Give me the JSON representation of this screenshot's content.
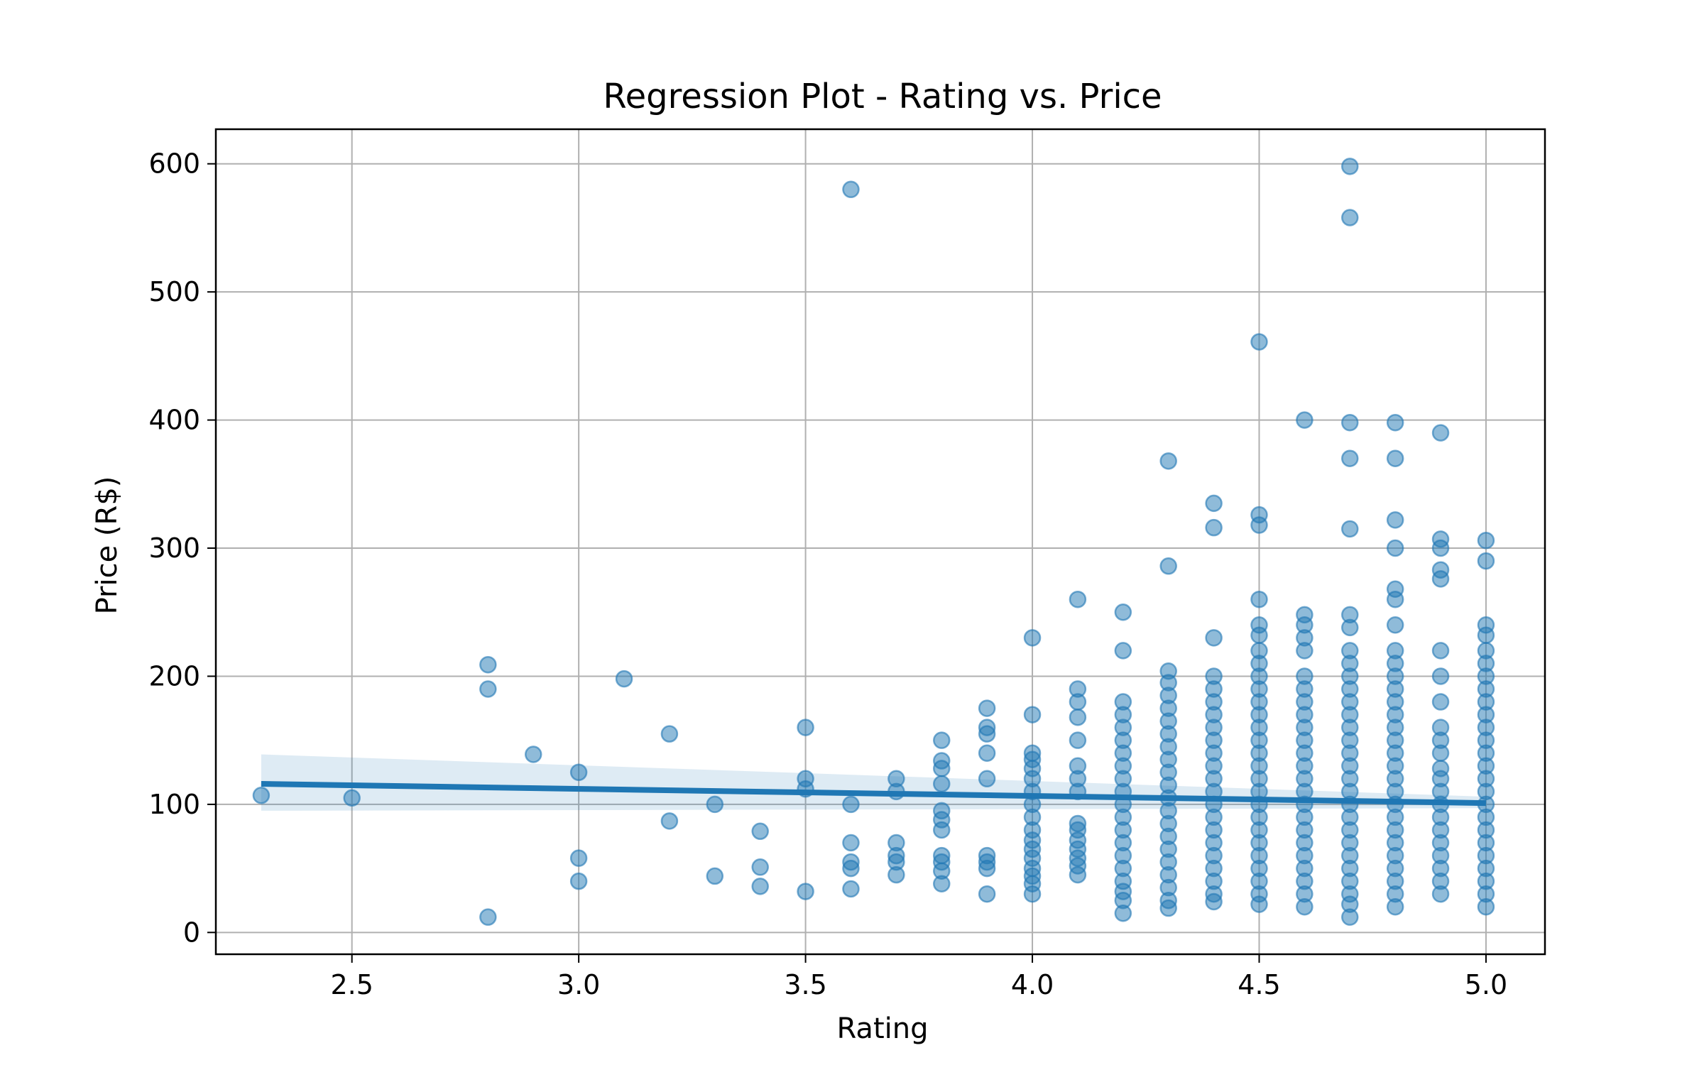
{
  "chart_data": {
    "type": "scatter",
    "title": "Regression Plot - Rating vs. Price",
    "xlabel": "Rating",
    "ylabel": "Price (R$)",
    "xlim": [
      2.2,
      5.13
    ],
    "ylim": [
      -17,
      627
    ],
    "x_ticks": [
      2.5,
      3.0,
      3.5,
      4.0,
      4.5,
      5.0
    ],
    "x_tick_labels": [
      "2.5",
      "3.0",
      "3.5",
      "4.0",
      "4.5",
      "5.0"
    ],
    "y_ticks": [
      0,
      100,
      200,
      300,
      400,
      500,
      600
    ],
    "y_tick_labels": [
      "0",
      "100",
      "200",
      "300",
      "400",
      "500",
      "600"
    ],
    "grid": true,
    "colors": {
      "points": "#1f77b4",
      "line": "#1f77b4",
      "band": "#1f77b4"
    },
    "regression": {
      "x": [
        2.3,
        5.0
      ],
      "y": [
        116,
        101
      ],
      "ci_lower": [
        95,
        97
      ],
      "ci_upper": [
        139,
        106
      ]
    },
    "points": [
      [
        2.3,
        107
      ],
      [
        2.5,
        105
      ],
      [
        2.8,
        209
      ],
      [
        2.8,
        190
      ],
      [
        2.8,
        12
      ],
      [
        2.9,
        139
      ],
      [
        3.0,
        125
      ],
      [
        3.0,
        58
      ],
      [
        3.0,
        40
      ],
      [
        3.1,
        198
      ],
      [
        3.2,
        155
      ],
      [
        3.2,
        87
      ],
      [
        3.3,
        100
      ],
      [
        3.3,
        44
      ],
      [
        3.4,
        79
      ],
      [
        3.4,
        51
      ],
      [
        3.4,
        36
      ],
      [
        3.5,
        160
      ],
      [
        3.5,
        120
      ],
      [
        3.5,
        112
      ],
      [
        3.5,
        32
      ],
      [
        3.6,
        580
      ],
      [
        3.6,
        100
      ],
      [
        3.6,
        70
      ],
      [
        3.6,
        55
      ],
      [
        3.6,
        50
      ],
      [
        3.6,
        34
      ],
      [
        3.7,
        120
      ],
      [
        3.7,
        110
      ],
      [
        3.7,
        70
      ],
      [
        3.7,
        60
      ],
      [
        3.7,
        55
      ],
      [
        3.7,
        45
      ],
      [
        3.8,
        150
      ],
      [
        3.8,
        134
      ],
      [
        3.8,
        128
      ],
      [
        3.8,
        116
      ],
      [
        3.8,
        95
      ],
      [
        3.8,
        88
      ],
      [
        3.8,
        80
      ],
      [
        3.8,
        60
      ],
      [
        3.8,
        55
      ],
      [
        3.8,
        48
      ],
      [
        3.8,
        38
      ],
      [
        3.9,
        175
      ],
      [
        3.9,
        160
      ],
      [
        3.9,
        155
      ],
      [
        3.9,
        140
      ],
      [
        3.9,
        120
      ],
      [
        3.9,
        60
      ],
      [
        3.9,
        55
      ],
      [
        3.9,
        50
      ],
      [
        3.9,
        30
      ],
      [
        4.0,
        230
      ],
      [
        4.0,
        170
      ],
      [
        4.0,
        140
      ],
      [
        4.0,
        135
      ],
      [
        4.0,
        128
      ],
      [
        4.0,
        120
      ],
      [
        4.0,
        110
      ],
      [
        4.0,
        100
      ],
      [
        4.0,
        90
      ],
      [
        4.0,
        80
      ],
      [
        4.0,
        72
      ],
      [
        4.0,
        65
      ],
      [
        4.0,
        58
      ],
      [
        4.0,
        50
      ],
      [
        4.0,
        44
      ],
      [
        4.0,
        38
      ],
      [
        4.0,
        30
      ],
      [
        4.1,
        260
      ],
      [
        4.1,
        190
      ],
      [
        4.1,
        180
      ],
      [
        4.1,
        168
      ],
      [
        4.1,
        150
      ],
      [
        4.1,
        130
      ],
      [
        4.1,
        120
      ],
      [
        4.1,
        110
      ],
      [
        4.1,
        85
      ],
      [
        4.1,
        80
      ],
      [
        4.1,
        72
      ],
      [
        4.1,
        65
      ],
      [
        4.1,
        58
      ],
      [
        4.1,
        52
      ],
      [
        4.1,
        45
      ],
      [
        4.2,
        250
      ],
      [
        4.2,
        220
      ],
      [
        4.2,
        180
      ],
      [
        4.2,
        170
      ],
      [
        4.2,
        160
      ],
      [
        4.2,
        150
      ],
      [
        4.2,
        140
      ],
      [
        4.2,
        130
      ],
      [
        4.2,
        120
      ],
      [
        4.2,
        110
      ],
      [
        4.2,
        100
      ],
      [
        4.2,
        90
      ],
      [
        4.2,
        80
      ],
      [
        4.2,
        70
      ],
      [
        4.2,
        60
      ],
      [
        4.2,
        50
      ],
      [
        4.2,
        40
      ],
      [
        4.2,
        32
      ],
      [
        4.2,
        25
      ],
      [
        4.2,
        15
      ],
      [
        4.3,
        368
      ],
      [
        4.3,
        286
      ],
      [
        4.3,
        204
      ],
      [
        4.3,
        195
      ],
      [
        4.3,
        185
      ],
      [
        4.3,
        175
      ],
      [
        4.3,
        165
      ],
      [
        4.3,
        155
      ],
      [
        4.3,
        145
      ],
      [
        4.3,
        135
      ],
      [
        4.3,
        125
      ],
      [
        4.3,
        115
      ],
      [
        4.3,
        105
      ],
      [
        4.3,
        95
      ],
      [
        4.3,
        85
      ],
      [
        4.3,
        75
      ],
      [
        4.3,
        65
      ],
      [
        4.3,
        55
      ],
      [
        4.3,
        45
      ],
      [
        4.3,
        35
      ],
      [
        4.3,
        25
      ],
      [
        4.3,
        19
      ],
      [
        4.4,
        335
      ],
      [
        4.4,
        316
      ],
      [
        4.4,
        230
      ],
      [
        4.4,
        200
      ],
      [
        4.4,
        190
      ],
      [
        4.4,
        180
      ],
      [
        4.4,
        170
      ],
      [
        4.4,
        160
      ],
      [
        4.4,
        150
      ],
      [
        4.4,
        140
      ],
      [
        4.4,
        130
      ],
      [
        4.4,
        120
      ],
      [
        4.4,
        110
      ],
      [
        4.4,
        100
      ],
      [
        4.4,
        90
      ],
      [
        4.4,
        80
      ],
      [
        4.4,
        70
      ],
      [
        4.4,
        60
      ],
      [
        4.4,
        50
      ],
      [
        4.4,
        40
      ],
      [
        4.4,
        30
      ],
      [
        4.4,
        24
      ],
      [
        4.5,
        461
      ],
      [
        4.5,
        326
      ],
      [
        4.5,
        318
      ],
      [
        4.5,
        260
      ],
      [
        4.5,
        240
      ],
      [
        4.5,
        232
      ],
      [
        4.5,
        220
      ],
      [
        4.5,
        210
      ],
      [
        4.5,
        200
      ],
      [
        4.5,
        190
      ],
      [
        4.5,
        180
      ],
      [
        4.5,
        170
      ],
      [
        4.5,
        160
      ],
      [
        4.5,
        150
      ],
      [
        4.5,
        140
      ],
      [
        4.5,
        130
      ],
      [
        4.5,
        120
      ],
      [
        4.5,
        110
      ],
      [
        4.5,
        100
      ],
      [
        4.5,
        90
      ],
      [
        4.5,
        80
      ],
      [
        4.5,
        70
      ],
      [
        4.5,
        60
      ],
      [
        4.5,
        50
      ],
      [
        4.5,
        40
      ],
      [
        4.5,
        30
      ],
      [
        4.5,
        22
      ],
      [
        4.6,
        400
      ],
      [
        4.6,
        248
      ],
      [
        4.6,
        240
      ],
      [
        4.6,
        230
      ],
      [
        4.6,
        220
      ],
      [
        4.6,
        200
      ],
      [
        4.6,
        190
      ],
      [
        4.6,
        180
      ],
      [
        4.6,
        170
      ],
      [
        4.6,
        160
      ],
      [
        4.6,
        150
      ],
      [
        4.6,
        140
      ],
      [
        4.6,
        130
      ],
      [
        4.6,
        120
      ],
      [
        4.6,
        110
      ],
      [
        4.6,
        100
      ],
      [
        4.6,
        90
      ],
      [
        4.6,
        80
      ],
      [
        4.6,
        70
      ],
      [
        4.6,
        60
      ],
      [
        4.6,
        50
      ],
      [
        4.6,
        40
      ],
      [
        4.6,
        30
      ],
      [
        4.6,
        20
      ],
      [
        4.7,
        598
      ],
      [
        4.7,
        558
      ],
      [
        4.7,
        398
      ],
      [
        4.7,
        370
      ],
      [
        4.7,
        315
      ],
      [
        4.7,
        248
      ],
      [
        4.7,
        238
      ],
      [
        4.7,
        220
      ],
      [
        4.7,
        210
      ],
      [
        4.7,
        200
      ],
      [
        4.7,
        190
      ],
      [
        4.7,
        180
      ],
      [
        4.7,
        170
      ],
      [
        4.7,
        160
      ],
      [
        4.7,
        150
      ],
      [
        4.7,
        140
      ],
      [
        4.7,
        130
      ],
      [
        4.7,
        120
      ],
      [
        4.7,
        110
      ],
      [
        4.7,
        100
      ],
      [
        4.7,
        90
      ],
      [
        4.7,
        80
      ],
      [
        4.7,
        70
      ],
      [
        4.7,
        60
      ],
      [
        4.7,
        50
      ],
      [
        4.7,
        40
      ],
      [
        4.7,
        30
      ],
      [
        4.7,
        22
      ],
      [
        4.7,
        12
      ],
      [
        4.8,
        398
      ],
      [
        4.8,
        370
      ],
      [
        4.8,
        322
      ],
      [
        4.8,
        300
      ],
      [
        4.8,
        268
      ],
      [
        4.8,
        260
      ],
      [
        4.8,
        240
      ],
      [
        4.8,
        220
      ],
      [
        4.8,
        210
      ],
      [
        4.8,
        200
      ],
      [
        4.8,
        190
      ],
      [
        4.8,
        180
      ],
      [
        4.8,
        170
      ],
      [
        4.8,
        160
      ],
      [
        4.8,
        150
      ],
      [
        4.8,
        140
      ],
      [
        4.8,
        130
      ],
      [
        4.8,
        120
      ],
      [
        4.8,
        110
      ],
      [
        4.8,
        100
      ],
      [
        4.8,
        90
      ],
      [
        4.8,
        80
      ],
      [
        4.8,
        70
      ],
      [
        4.8,
        60
      ],
      [
        4.8,
        50
      ],
      [
        4.8,
        40
      ],
      [
        4.8,
        30
      ],
      [
        4.8,
        20
      ],
      [
        4.9,
        390
      ],
      [
        4.9,
        307
      ],
      [
        4.9,
        300
      ],
      [
        4.9,
        283
      ],
      [
        4.9,
        276
      ],
      [
        4.9,
        220
      ],
      [
        4.9,
        200
      ],
      [
        4.9,
        180
      ],
      [
        4.9,
        160
      ],
      [
        4.9,
        150
      ],
      [
        4.9,
        140
      ],
      [
        4.9,
        128
      ],
      [
        4.9,
        120
      ],
      [
        4.9,
        110
      ],
      [
        4.9,
        100
      ],
      [
        4.9,
        90
      ],
      [
        4.9,
        80
      ],
      [
        4.9,
        70
      ],
      [
        4.9,
        60
      ],
      [
        4.9,
        50
      ],
      [
        4.9,
        40
      ],
      [
        4.9,
        30
      ],
      [
        5.0,
        306
      ],
      [
        5.0,
        290
      ],
      [
        5.0,
        240
      ],
      [
        5.0,
        232
      ],
      [
        5.0,
        220
      ],
      [
        5.0,
        210
      ],
      [
        5.0,
        200
      ],
      [
        5.0,
        190
      ],
      [
        5.0,
        180
      ],
      [
        5.0,
        170
      ],
      [
        5.0,
        160
      ],
      [
        5.0,
        150
      ],
      [
        5.0,
        140
      ],
      [
        5.0,
        130
      ],
      [
        5.0,
        120
      ],
      [
        5.0,
        110
      ],
      [
        5.0,
        100
      ],
      [
        5.0,
        90
      ],
      [
        5.0,
        80
      ],
      [
        5.0,
        70
      ],
      [
        5.0,
        60
      ],
      [
        5.0,
        50
      ],
      [
        5.0,
        40
      ],
      [
        5.0,
        30
      ],
      [
        5.0,
        20
      ]
    ]
  }
}
